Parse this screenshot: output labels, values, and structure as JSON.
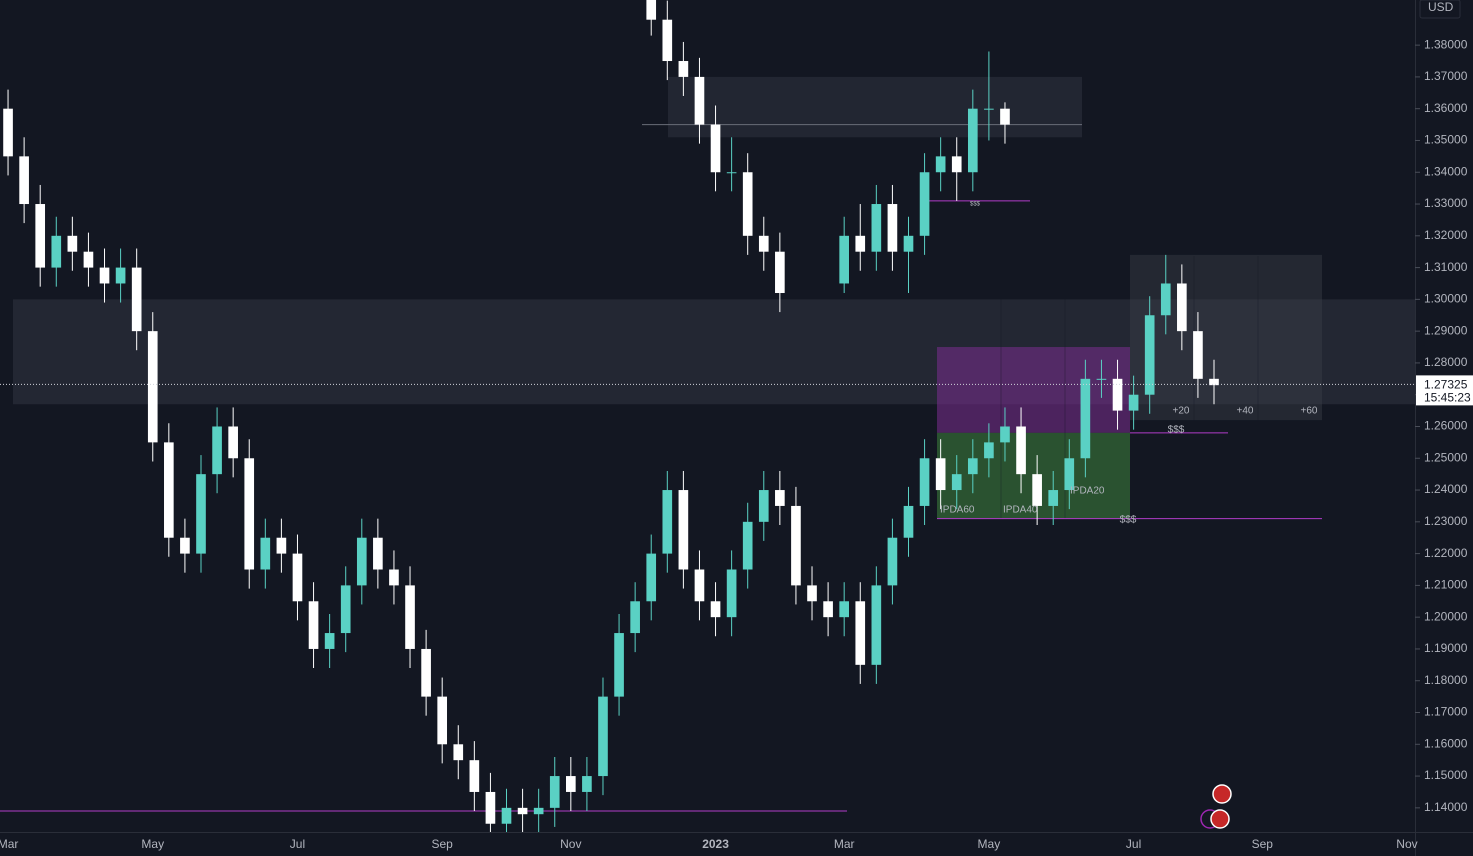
{
  "chart_data": {
    "type": "candlestick",
    "currency": "USD",
    "categories": [
      "Mar",
      null,
      null,
      null,
      null,
      null,
      null,
      null,
      null,
      "May",
      null,
      null,
      null,
      null,
      null,
      null,
      null,
      null,
      "Jul",
      null,
      null,
      null,
      null,
      null,
      null,
      null,
      null,
      "Sep",
      null,
      null,
      null,
      null,
      null,
      null,
      null,
      "Nov",
      null,
      null,
      null,
      null,
      null,
      null,
      null,
      null,
      "2023",
      null,
      null,
      null,
      null,
      null,
      null,
      null,
      "Mar",
      null,
      null,
      null,
      null,
      null,
      null,
      null,
      null,
      "May",
      null,
      null,
      null,
      null,
      null,
      null,
      null,
      null,
      "Jul",
      null,
      null,
      null,
      null,
      null,
      null,
      null,
      "Sep",
      null,
      null,
      null,
      null,
      null,
      null,
      null,
      null,
      "Nov"
    ],
    "series": [
      {
        "up_color": "#5ad1c4",
        "down_color": "#ffffff",
        "open": [
          1.36,
          1.345,
          1.33,
          1.31,
          1.32,
          1.315,
          1.31,
          1.305,
          1.31,
          1.29,
          1.255,
          1.225,
          1.22,
          1.245,
          1.26,
          1.25,
          1.215,
          1.225,
          1.22,
          1.205,
          1.19,
          1.195,
          1.21,
          1.225,
          1.215,
          1.21,
          1.19,
          1.175,
          1.16,
          1.155,
          1.145,
          1.135,
          1.14,
          1.138,
          1.14,
          1.15,
          1.145,
          1.15,
          1.175,
          1.195,
          1.205,
          1.22,
          1.24,
          1.215,
          1.205,
          1.2,
          1.215,
          1.23,
          1.24,
          1.235,
          1.21,
          1.205,
          1.2,
          1.205,
          1.185,
          1.21,
          1.225,
          1.235,
          1.25,
          1.24,
          1.245,
          1.25,
          1.255,
          1.26,
          1.245,
          1.235,
          1.24,
          1.25,
          1.275,
          1.275,
          1.265,
          1.27,
          1.295,
          1.305,
          1.29,
          1.275,
          null,
          null,
          null,
          null,
          null,
          null,
          null,
          null,
          null,
          null,
          null,
          null
        ],
        "high": [
          1.366,
          1.351,
          1.336,
          1.326,
          1.326,
          1.321,
          1.316,
          1.316,
          1.316,
          1.296,
          1.261,
          1.231,
          1.251,
          1.266,
          1.266,
          1.256,
          1.231,
          1.231,
          1.226,
          1.211,
          1.201,
          1.216,
          1.231,
          1.231,
          1.221,
          1.216,
          1.196,
          1.181,
          1.166,
          1.161,
          1.151,
          1.146,
          1.146,
          1.146,
          1.156,
          1.156,
          1.156,
          1.181,
          1.201,
          1.211,
          1.226,
          1.246,
          1.246,
          1.221,
          1.211,
          1.221,
          1.236,
          1.246,
          1.246,
          1.241,
          1.216,
          1.211,
          1.211,
          1.211,
          1.216,
          1.231,
          1.241,
          1.256,
          1.256,
          1.251,
          1.256,
          1.261,
          1.266,
          1.266,
          1.251,
          1.246,
          1.256,
          1.281,
          1.281,
          1.281,
          1.276,
          1.301,
          1.314,
          1.311,
          1.296,
          1.281,
          null,
          null,
          null,
          null,
          null,
          null,
          null,
          null,
          null,
          null,
          null,
          null
        ],
        "low": [
          1.339,
          1.324,
          1.304,
          1.304,
          1.309,
          1.304,
          1.299,
          1.299,
          1.284,
          1.249,
          1.219,
          1.214,
          1.214,
          1.239,
          1.244,
          1.209,
          1.209,
          1.214,
          1.199,
          1.184,
          1.184,
          1.189,
          1.204,
          1.209,
          1.204,
          1.184,
          1.169,
          1.154,
          1.149,
          1.139,
          1.129,
          1.129,
          1.132,
          1.132,
          1.134,
          1.139,
          1.139,
          1.144,
          1.169,
          1.189,
          1.199,
          1.214,
          1.209,
          1.199,
          1.194,
          1.194,
          1.209,
          1.224,
          1.229,
          1.204,
          1.199,
          1.194,
          1.194,
          1.179,
          1.179,
          1.204,
          1.219,
          1.229,
          1.234,
          1.234,
          1.239,
          1.244,
          1.249,
          1.239,
          1.229,
          1.229,
          1.234,
          1.244,
          1.269,
          1.259,
          1.259,
          1.264,
          1.289,
          1.284,
          1.269,
          1.267,
          null,
          null,
          null,
          null,
          null,
          null,
          null,
          null,
          null,
          null,
          null,
          null
        ],
        "close": [
          1.345,
          1.33,
          1.31,
          1.32,
          1.315,
          1.31,
          1.305,
          1.31,
          1.29,
          1.255,
          1.225,
          1.22,
          1.245,
          1.26,
          1.25,
          1.215,
          1.225,
          1.22,
          1.205,
          1.19,
          1.195,
          1.21,
          1.225,
          1.215,
          1.21,
          1.19,
          1.175,
          1.16,
          1.155,
          1.145,
          1.135,
          1.14,
          1.138,
          1.14,
          1.15,
          1.145,
          1.15,
          1.175,
          1.195,
          1.205,
          1.22,
          1.24,
          1.215,
          1.205,
          1.2,
          1.215,
          1.23,
          1.24,
          1.235,
          1.21,
          1.205,
          1.2,
          1.205,
          1.185,
          1.21,
          1.225,
          1.235,
          1.25,
          1.24,
          1.245,
          1.25,
          1.255,
          1.26,
          1.245,
          1.235,
          1.24,
          1.25,
          1.275,
          1.275,
          1.265,
          1.27,
          1.295,
          1.305,
          1.29,
          1.275,
          1.273,
          null,
          null,
          null,
          null,
          null,
          null,
          null,
          null,
          null,
          null,
          null,
          null
        ]
      },
      {
        "up_color": "#5ad1c4",
        "down_color": "#ffffff",
        "open": [
          null,
          null,
          null,
          null,
          null,
          null,
          null,
          null,
          null,
          null,
          null,
          null,
          null,
          null,
          null,
          null,
          null,
          null,
          null,
          null,
          null,
          null,
          null,
          null,
          null,
          null,
          null,
          null,
          null,
          null,
          null,
          null,
          null,
          null,
          null,
          null,
          null,
          null,
          null,
          null,
          1.395,
          1.388,
          1.375,
          1.37,
          1.355,
          1.34,
          1.34,
          1.32,
          1.315,
          null,
          null,
          null,
          1.305,
          1.32,
          1.315,
          1.33,
          1.315,
          1.32,
          1.34,
          1.345,
          1.34,
          1.36,
          1.36,
          null,
          null,
          null,
          null,
          null,
          null,
          null,
          null,
          null,
          null,
          null,
          null,
          null,
          null,
          null,
          null,
          null,
          null,
          null,
          null,
          null,
          null,
          null
        ],
        "high": [
          null,
          null,
          null,
          null,
          null,
          null,
          null,
          null,
          null,
          null,
          null,
          null,
          null,
          null,
          null,
          null,
          null,
          null,
          null,
          null,
          null,
          null,
          null,
          null,
          null,
          null,
          null,
          null,
          null,
          null,
          null,
          null,
          null,
          null,
          null,
          null,
          null,
          null,
          null,
          null,
          1.398,
          1.394,
          1.381,
          1.376,
          1.361,
          1.351,
          1.346,
          1.326,
          1.321,
          null,
          null,
          null,
          1.326,
          1.33,
          1.336,
          1.336,
          1.326,
          1.346,
          1.351,
          1.351,
          1.366,
          1.378,
          1.362,
          null,
          null,
          null,
          null,
          null,
          null,
          null,
          null,
          null,
          null,
          null,
          null,
          null,
          null,
          null,
          null,
          null,
          null,
          null,
          null,
          null,
          null,
          null
        ],
        "low": [
          null,
          null,
          null,
          null,
          null,
          null,
          null,
          null,
          null,
          null,
          null,
          null,
          null,
          null,
          null,
          null,
          null,
          null,
          null,
          null,
          null,
          null,
          null,
          null,
          null,
          null,
          null,
          null,
          null,
          null,
          null,
          null,
          null,
          null,
          null,
          null,
          null,
          null,
          null,
          null,
          1.383,
          1.369,
          1.364,
          1.349,
          1.334,
          1.334,
          1.314,
          1.309,
          1.296,
          null,
          null,
          null,
          1.302,
          1.309,
          1.309,
          1.309,
          1.302,
          1.314,
          1.334,
          1.331,
          1.334,
          1.35,
          1.349,
          null,
          null,
          null,
          null,
          null,
          null,
          null,
          null,
          null,
          null,
          null,
          null,
          null,
          null,
          null,
          null,
          null,
          null,
          null,
          null,
          null,
          null,
          null
        ],
        "close": [
          null,
          null,
          null,
          null,
          null,
          null,
          null,
          null,
          null,
          null,
          null,
          null,
          null,
          null,
          null,
          null,
          null,
          null,
          null,
          null,
          null,
          null,
          null,
          null,
          null,
          null,
          null,
          null,
          null,
          null,
          null,
          null,
          null,
          null,
          null,
          null,
          null,
          null,
          null,
          null,
          1.388,
          1.375,
          1.37,
          1.355,
          1.34,
          1.34,
          1.32,
          1.315,
          1.302,
          null,
          null,
          null,
          1.32,
          1.315,
          1.33,
          1.315,
          1.32,
          1.34,
          1.345,
          1.34,
          1.36,
          1.36,
          1.355,
          null,
          null,
          null,
          null,
          null,
          null,
          null,
          null,
          null,
          null,
          null,
          null,
          null,
          null,
          null,
          null,
          null,
          null,
          null,
          null,
          null,
          null,
          null
        ]
      }
    ],
    "ylim": [
      1.1324,
      1.3942
    ],
    "yticks": [
      {
        "value": 1.14,
        "label": "1.14000"
      },
      {
        "value": 1.15,
        "label": "1.15000"
      },
      {
        "value": 1.16,
        "label": "1.16000"
      },
      {
        "value": 1.17,
        "label": "1.17000"
      },
      {
        "value": 1.18,
        "label": "1.18000"
      },
      {
        "value": 1.19,
        "label": "1.19000"
      },
      {
        "value": 1.2,
        "label": "1.20000"
      },
      {
        "value": 1.21,
        "label": "1.21000"
      },
      {
        "value": 1.22,
        "label": "1.22000"
      },
      {
        "value": 1.23,
        "label": "1.23000"
      },
      {
        "value": 1.24,
        "label": "1.24000"
      },
      {
        "value": 1.25,
        "label": "1.25000"
      },
      {
        "value": 1.26,
        "label": "1.26000"
      },
      {
        "value": 1.27,
        "label": "1.27000"
      },
      {
        "value": 1.28,
        "label": "1.28000"
      },
      {
        "value": 1.29,
        "label": "1.29000"
      },
      {
        "value": 1.3,
        "label": "1.30000"
      },
      {
        "value": 1.31,
        "label": "1.31000"
      },
      {
        "value": 1.32,
        "label": "1.32000"
      },
      {
        "value": 1.33,
        "label": "1.33000"
      },
      {
        "value": 1.34,
        "label": "1.34000"
      },
      {
        "value": 1.35,
        "label": "1.35000"
      },
      {
        "value": 1.36,
        "label": "1.36000"
      },
      {
        "value": 1.37,
        "label": "1.37000"
      },
      {
        "value": 1.38,
        "label": "1.38000"
      }
    ],
    "zones": [
      {
        "range": [
          1.267,
          1.3
        ],
        "color": "#2a2e39"
      },
      {
        "range": [
          1.351,
          1.37
        ],
        "color": "#2a2e39"
      },
      {
        "range": [
          1.258,
          1.285
        ],
        "color": "#7b2e8f"
      },
      {
        "range": [
          1.231,
          1.258
        ],
        "color": "#3a7a3a"
      },
      {
        "range": [
          1.262,
          1.314
        ],
        "color": "#3a3e48"
      }
    ],
    "levels": [
      {
        "price": 1.139,
        "color": "#b03cc8"
      },
      {
        "price": 1.258,
        "color": "#b03cc8"
      },
      {
        "price": 1.231,
        "color": "#b03cc8"
      },
      {
        "price": 1.331,
        "color": "#b03cc8"
      },
      {
        "price": 1.355,
        "color": "#6a6d78"
      }
    ],
    "annotations": [
      {
        "text": "IPDA60",
        "price": 1.2337
      },
      {
        "text": "IPDA40",
        "price": 1.2337
      },
      {
        "text": "IPDA20",
        "price": 1.2397
      },
      {
        "text": "$$$",
        "price": 1.2589
      },
      {
        "text": "$$$",
        "price": 1.2306
      },
      {
        "text": "$$$",
        "price": 1.33
      },
      {
        "text": "+20",
        "price": 1.2649
      },
      {
        "text": "+40",
        "price": 1.2649
      },
      {
        "text": "+60",
        "price": 1.2649
      }
    ],
    "last_price": 1.27325,
    "countdown": "15:45:23"
  }
}
